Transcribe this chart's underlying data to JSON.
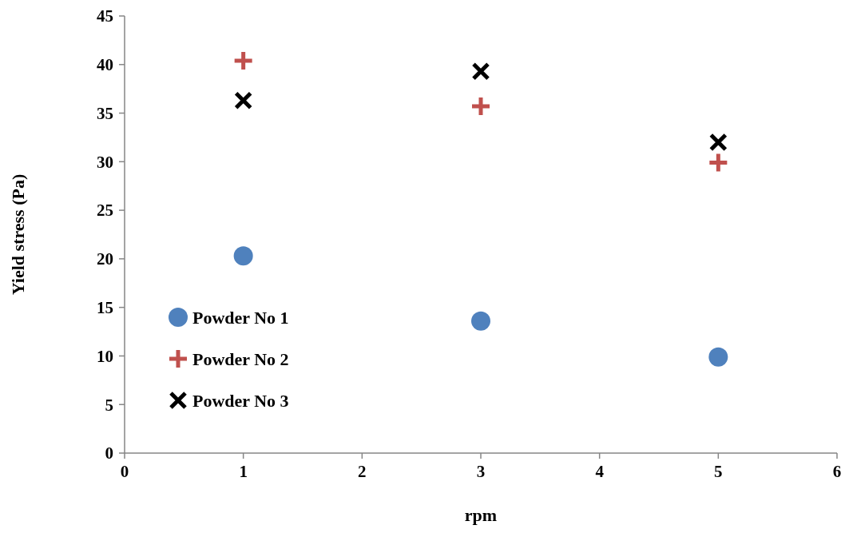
{
  "chart_data": {
    "type": "scatter",
    "xlabel": "rpm",
    "ylabel": "Yield stress (Pa)",
    "x": [
      1,
      3,
      5
    ],
    "series": [
      {
        "name": "Powder No 1",
        "color": "#4f81bd",
        "marker": "circle",
        "values": [
          20.3,
          13.6,
          9.9
        ]
      },
      {
        "name": "Powder No 2",
        "color": "#c0504d",
        "marker": "cross",
        "values": [
          40.4,
          35.7,
          29.9
        ]
      },
      {
        "name": "Powder No 3",
        "color": "#000000",
        "values": [
          36.3,
          39.3,
          32.0
        ]
      }
    ],
    "xlim": [
      0,
      6
    ],
    "xticks": [
      0,
      1,
      2,
      3,
      4,
      5,
      6
    ],
    "ylim": [
      0,
      45
    ],
    "yticks": [
      0,
      5,
      10,
      15,
      20,
      25,
      30,
      35,
      40,
      45
    ],
    "grid": false,
    "legend": "bottom left"
  }
}
